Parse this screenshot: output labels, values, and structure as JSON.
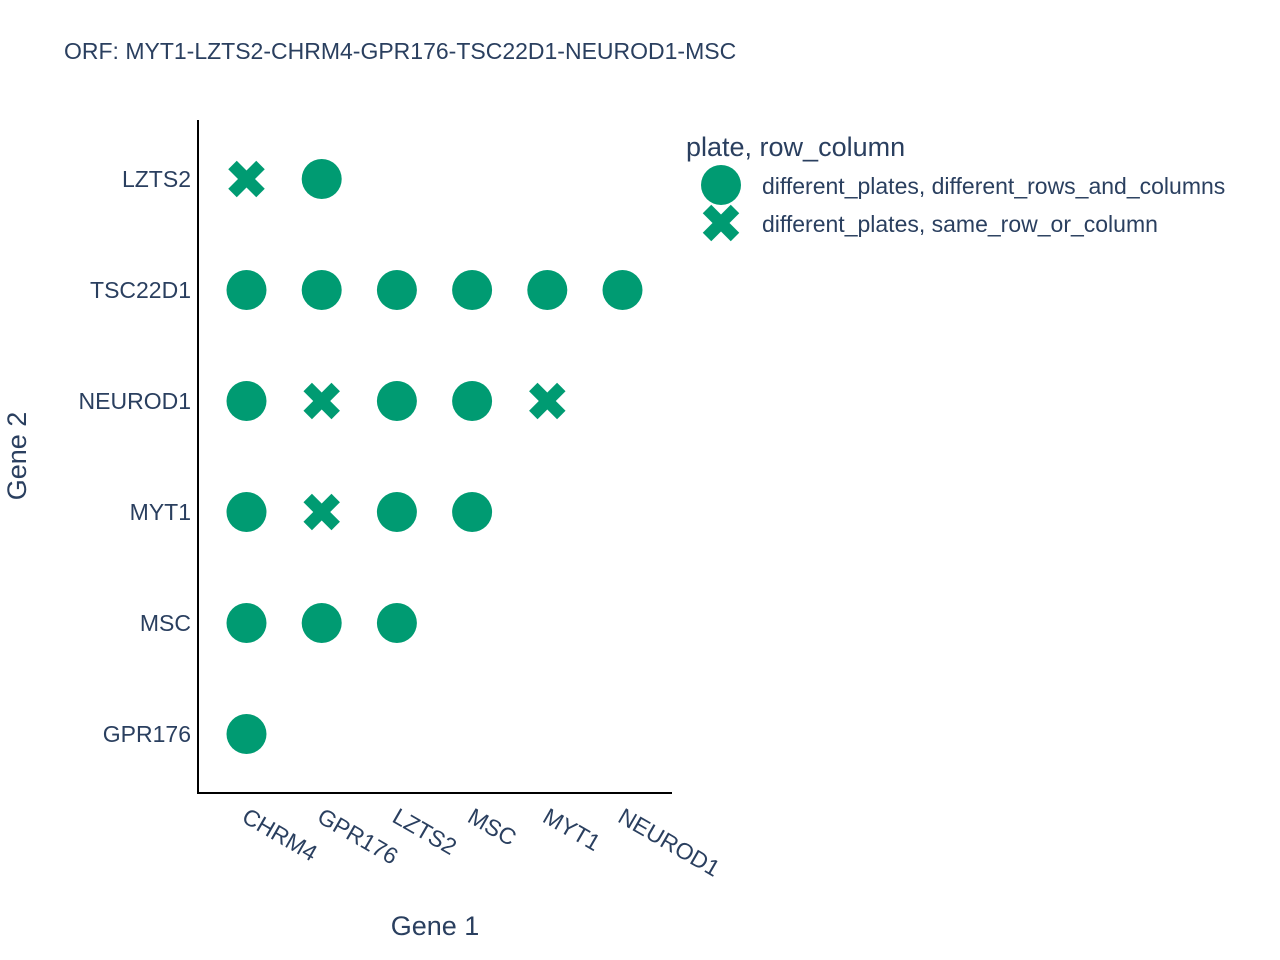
{
  "chart_data": {
    "type": "scatter",
    "title": "ORF: MYT1-LZTS2-CHRM4-GPR176-TSC22D1-NEUROD1-MSC",
    "xlabel": "Gene 1",
    "ylabel": "Gene 2",
    "x_categories": [
      "CHRM4",
      "GPR176",
      "LZTS2",
      "MSC",
      "MYT1",
      "NEUROD1"
    ],
    "y_categories": [
      "GPR176",
      "MSC",
      "MYT1",
      "NEUROD1",
      "TSC22D1",
      "LZTS2"
    ],
    "grid": false,
    "legend": {
      "title": "plate, row_column",
      "placement": "top-right"
    },
    "series": [
      {
        "name": "different_plates, different_rows_and_columns",
        "symbol": "circle",
        "color": "#009b72",
        "points": [
          {
            "x": "GPR176",
            "y": "LZTS2"
          },
          {
            "x": "CHRM4",
            "y": "TSC22D1"
          },
          {
            "x": "GPR176",
            "y": "TSC22D1"
          },
          {
            "x": "LZTS2",
            "y": "TSC22D1"
          },
          {
            "x": "MSC",
            "y": "TSC22D1"
          },
          {
            "x": "MYT1",
            "y": "TSC22D1"
          },
          {
            "x": "NEUROD1",
            "y": "TSC22D1"
          },
          {
            "x": "CHRM4",
            "y": "NEUROD1"
          },
          {
            "x": "LZTS2",
            "y": "NEUROD1"
          },
          {
            "x": "MSC",
            "y": "NEUROD1"
          },
          {
            "x": "CHRM4",
            "y": "MYT1"
          },
          {
            "x": "LZTS2",
            "y": "MYT1"
          },
          {
            "x": "MSC",
            "y": "MYT1"
          },
          {
            "x": "CHRM4",
            "y": "MSC"
          },
          {
            "x": "GPR176",
            "y": "MSC"
          },
          {
            "x": "LZTS2",
            "y": "MSC"
          },
          {
            "x": "CHRM4",
            "y": "GPR176"
          }
        ]
      },
      {
        "name": "different_plates, same_row_or_column",
        "symbol": "x",
        "color": "#009b72",
        "points": [
          {
            "x": "CHRM4",
            "y": "LZTS2"
          },
          {
            "x": "GPR176",
            "y": "NEUROD1"
          },
          {
            "x": "MYT1",
            "y": "NEUROD1"
          },
          {
            "x": "GPR176",
            "y": "MYT1"
          }
        ]
      }
    ]
  }
}
